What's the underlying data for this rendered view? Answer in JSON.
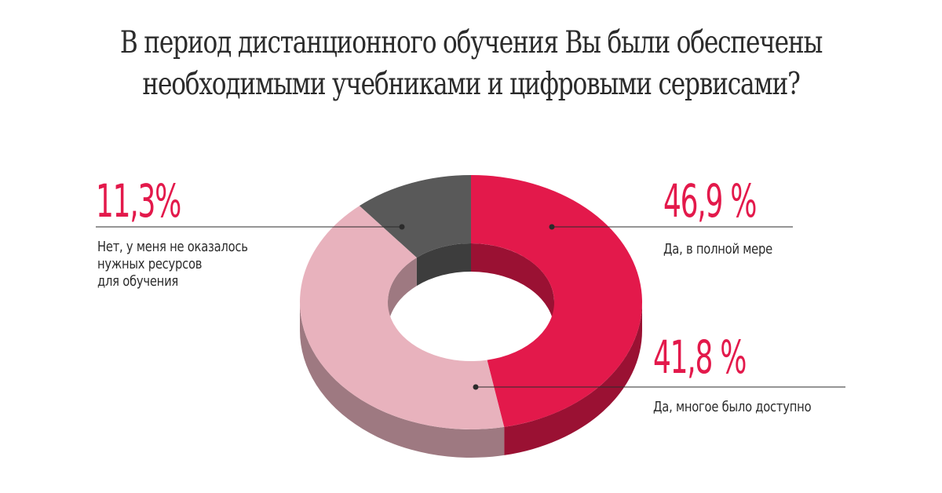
{
  "title": [
    "В период дистанционного обучения Вы были обеспечены",
    "необходимыми учебниками и цифровыми сервисами?"
  ],
  "colors": {
    "accent": "#e3194b",
    "dark": "#595959",
    "light": "#e8b2bd",
    "text": "#2b2b2b"
  },
  "chart_data": {
    "type": "pie",
    "style": "3d-donut",
    "title": "В период дистанционного обучения Вы были обеспечены необходимыми учебниками и цифровыми сервисами?",
    "slices": [
      {
        "label_lines": [
          "Да, в полной мере"
        ],
        "value": 46.9,
        "value_text": "46,9 %",
        "color": "#e3194b"
      },
      {
        "label_lines": [
          "Да, многое было доступно"
        ],
        "value": 41.8,
        "value_text": "41,8 %",
        "color": "#e8b2bd"
      },
      {
        "label_lines": [
          "Нет, у меня не оказалось",
          "нужных ресурсов",
          "для обучения"
        ],
        "value": 11.3,
        "value_text": "11,3%",
        "color": "#595959"
      }
    ]
  }
}
